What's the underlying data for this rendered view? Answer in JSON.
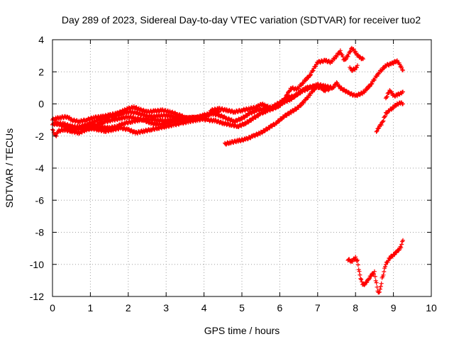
{
  "chart_data": {
    "type": "scatter",
    "title": "Day 289 of 2023, Sidereal Day-to-day VTEC variation (SDTVAR) for receiver tuo2",
    "xlabel": "GPS time / hours",
    "ylabel": "SDTVAR / TECUs",
    "xlim": [
      0,
      10
    ],
    "ylim": [
      -12,
      4
    ],
    "x_ticks": [
      0,
      1,
      2,
      3,
      4,
      5,
      6,
      7,
      8,
      9,
      10
    ],
    "y_ticks": [
      -12,
      -10,
      -8,
      -6,
      -4,
      -2,
      0,
      2,
      4
    ],
    "x_tick_labels": [
      "0",
      "1",
      "2",
      "3",
      "4",
      "5",
      "6",
      "7",
      "8",
      "9",
      "10"
    ],
    "y_tick_labels": [
      "-12",
      "-10",
      "-8",
      "-6",
      "-4",
      "-2",
      "0",
      "2",
      "4"
    ],
    "grid": true,
    "marker": "+",
    "color": "#ff0000",
    "series": [
      {
        "points": [
          [
            0.0,
            -1.0
          ],
          [
            0.1,
            -0.9
          ],
          [
            0.2,
            -0.85
          ],
          [
            0.4,
            -0.8
          ],
          [
            0.5,
            -1.0
          ],
          [
            0.7,
            -1.1
          ],
          [
            0.9,
            -1.0
          ],
          [
            1.1,
            -0.85
          ],
          [
            1.3,
            -0.8
          ],
          [
            1.5,
            -0.7
          ],
          [
            1.7,
            -0.6
          ],
          [
            1.9,
            -0.4
          ],
          [
            2.0,
            -0.3
          ],
          [
            2.15,
            -0.2
          ],
          [
            2.3,
            -0.35
          ],
          [
            2.5,
            -0.5
          ],
          [
            2.7,
            -0.45
          ],
          [
            2.9,
            -0.4
          ],
          [
            3.1,
            -0.5
          ],
          [
            3.3,
            -0.65
          ],
          [
            3.5,
            -0.85
          ],
          [
            3.7,
            -0.95
          ],
          [
            3.85,
            -1.0
          ],
          [
            4.0,
            -0.9
          ],
          [
            4.1,
            -0.7
          ],
          [
            4.2,
            -0.4
          ],
          [
            4.4,
            -0.3
          ],
          [
            4.6,
            -0.4
          ],
          [
            4.8,
            -0.5
          ],
          [
            5.0,
            -0.4
          ],
          [
            5.2,
            -0.3
          ],
          [
            5.4,
            -0.2
          ],
          [
            5.5,
            0.0
          ],
          [
            5.6,
            -0.1
          ],
          [
            5.8,
            -0.3
          ],
          [
            6.0,
            -0.1
          ],
          [
            6.1,
            0.2
          ],
          [
            6.2,
            0.6
          ],
          [
            6.3,
            1.0
          ],
          [
            6.45,
            0.9
          ],
          [
            6.6,
            1.3
          ],
          [
            6.8,
            1.8
          ],
          [
            7.0,
            2.6
          ],
          [
            7.2,
            2.7
          ],
          [
            7.35,
            2.6
          ],
          [
            7.5,
            3.0
          ],
          [
            7.6,
            3.3
          ],
          [
            7.7,
            2.7
          ],
          [
            7.8,
            3.0
          ],
          [
            7.9,
            3.5
          ],
          [
            8.0,
            3.2
          ],
          [
            8.1,
            2.9
          ],
          [
            8.2,
            2.8
          ]
        ]
      },
      {
        "points": [
          [
            0.0,
            -1.3
          ],
          [
            0.1,
            -1.2
          ],
          [
            0.3,
            -1.25
          ],
          [
            0.5,
            -1.4
          ],
          [
            0.7,
            -1.45
          ],
          [
            0.9,
            -1.3
          ],
          [
            1.1,
            -1.1
          ],
          [
            1.3,
            -0.95
          ],
          [
            1.5,
            -0.8
          ],
          [
            1.7,
            -0.7
          ],
          [
            1.9,
            -0.55
          ],
          [
            2.0,
            -0.5
          ],
          [
            2.2,
            -0.55
          ],
          [
            2.4,
            -0.7
          ],
          [
            2.6,
            -0.8
          ],
          [
            2.8,
            -0.75
          ],
          [
            3.0,
            -0.7
          ],
          [
            3.2,
            -0.8
          ],
          [
            3.4,
            -0.85
          ],
          [
            3.6,
            -0.9
          ],
          [
            3.8,
            -0.85
          ],
          [
            4.0,
            -0.7
          ],
          [
            4.2,
            -0.6
          ],
          [
            4.4,
            -0.7
          ],
          [
            4.6,
            -0.9
          ],
          [
            4.8,
            -1.1
          ],
          [
            5.0,
            -0.9
          ],
          [
            5.2,
            -0.6
          ],
          [
            5.4,
            -0.4
          ],
          [
            5.6,
            -0.3
          ],
          [
            5.8,
            -0.2
          ],
          [
            6.0,
            0.1
          ],
          [
            6.2,
            0.4
          ],
          [
            6.4,
            0.5
          ],
          [
            6.6,
            0.8
          ],
          [
            6.8,
            1.0
          ],
          [
            7.0,
            1.2
          ],
          [
            7.2,
            1.1
          ],
          [
            7.4,
            1.0
          ],
          [
            7.5,
            1.3
          ],
          [
            7.6,
            1.0
          ],
          [
            7.8,
            0.7
          ],
          [
            8.0,
            0.5
          ],
          [
            8.2,
            0.7
          ],
          [
            8.4,
            1.2
          ],
          [
            8.6,
            1.9
          ],
          [
            8.8,
            2.4
          ],
          [
            8.95,
            2.5
          ],
          [
            9.1,
            2.7
          ],
          [
            9.2,
            2.3
          ],
          [
            9.25,
            2.1
          ]
        ]
      },
      {
        "points": [
          [
            0.0,
            -1.6
          ],
          [
            0.05,
            -1.9
          ],
          [
            0.1,
            -2.0
          ],
          [
            0.15,
            -1.7
          ],
          [
            0.3,
            -1.6
          ],
          [
            0.5,
            -1.7
          ],
          [
            0.7,
            -1.8
          ],
          [
            0.9,
            -1.6
          ],
          [
            1.1,
            -1.5
          ],
          [
            1.3,
            -1.45
          ],
          [
            1.5,
            -1.5
          ],
          [
            1.7,
            -1.4
          ],
          [
            1.9,
            -1.2
          ],
          [
            2.1,
            -1.1
          ],
          [
            2.3,
            -1.0
          ],
          [
            2.5,
            -0.95
          ],
          [
            2.7,
            -1.0
          ],
          [
            2.9,
            -1.05
          ],
          [
            3.1,
            -1.0
          ],
          [
            3.3,
            -0.95
          ],
          [
            3.5,
            -0.9
          ],
          [
            3.7,
            -0.85
          ],
          [
            3.9,
            -0.9
          ],
          [
            4.1,
            -1.0
          ],
          [
            4.3,
            -1.05
          ],
          [
            4.5,
            -1.2
          ],
          [
            4.7,
            -1.3
          ],
          [
            4.9,
            -1.4
          ],
          [
            5.1,
            -1.2
          ],
          [
            5.3,
            -0.9
          ],
          [
            5.5,
            -0.6
          ],
          [
            5.7,
            -0.4
          ],
          [
            5.9,
            -0.2
          ],
          [
            6.1,
            0.1
          ],
          [
            6.3,
            0.3
          ],
          [
            6.5,
            0.7
          ],
          [
            6.7,
            1.0
          ],
          [
            6.9,
            1.1
          ],
          [
            7.1,
            1.0
          ],
          [
            7.3,
            0.9
          ]
        ]
      },
      {
        "points": [
          [
            0.05,
            -1.2
          ],
          [
            0.2,
            -1.3
          ],
          [
            0.4,
            -1.5
          ],
          [
            0.6,
            -1.6
          ],
          [
            0.8,
            -1.5
          ],
          [
            1.0,
            -1.4
          ],
          [
            1.2,
            -1.3
          ],
          [
            1.4,
            -1.1
          ],
          [
            1.6,
            -1.0
          ],
          [
            1.8,
            -0.9
          ],
          [
            2.0,
            -0.8
          ],
          [
            2.2,
            -0.9
          ],
          [
            2.4,
            -1.0
          ],
          [
            2.6,
            -1.2
          ],
          [
            2.8,
            -1.3
          ],
          [
            3.0,
            -1.2
          ],
          [
            3.2,
            -1.1
          ],
          [
            3.4,
            -1.0
          ],
          [
            3.6,
            -0.9
          ],
          [
            3.8,
            -0.85
          ],
          [
            4.0,
            -0.8
          ],
          [
            4.2,
            -0.6
          ],
          [
            4.4,
            -0.5
          ]
        ]
      },
      {
        "points": [
          [
            1.0,
            -1.5
          ],
          [
            1.2,
            -1.6
          ],
          [
            1.4,
            -1.7
          ],
          [
            1.6,
            -1.6
          ],
          [
            1.8,
            -1.5
          ],
          [
            2.0,
            -1.6
          ],
          [
            2.2,
            -1.8
          ],
          [
            2.4,
            -1.7
          ],
          [
            2.6,
            -1.6
          ],
          [
            2.8,
            -1.5
          ],
          [
            3.0,
            -1.4
          ],
          [
            3.2,
            -1.3
          ],
          [
            3.4,
            -1.2
          ],
          [
            3.6,
            -1.1
          ],
          [
            3.8,
            -1.0
          ]
        ]
      },
      {
        "points": [
          [
            4.55,
            -2.5
          ],
          [
            4.7,
            -2.4
          ],
          [
            4.9,
            -2.3
          ],
          [
            5.1,
            -2.2
          ],
          [
            5.3,
            -2.0
          ],
          [
            5.5,
            -1.8
          ],
          [
            5.7,
            -1.5
          ],
          [
            5.9,
            -1.2
          ],
          [
            6.1,
            -0.8
          ],
          [
            6.3,
            -0.5
          ],
          [
            6.5,
            -0.2
          ],
          [
            6.7,
            0.3
          ],
          [
            6.8,
            0.6
          ],
          [
            6.9,
            0.9
          ],
          [
            7.0,
            1.1
          ],
          [
            7.1,
            1.0
          ],
          [
            7.2,
            0.8
          ]
        ]
      },
      {
        "points": [
          [
            8.55,
            -1.7
          ],
          [
            8.6,
            -1.5
          ],
          [
            8.7,
            -1.2
          ],
          [
            8.75,
            -0.9
          ],
          [
            8.8,
            -0.6
          ],
          [
            8.9,
            -0.4
          ],
          [
            9.0,
            -0.2
          ],
          [
            9.1,
            0.0
          ],
          [
            9.2,
            0.05
          ],
          [
            9.25,
            0.0
          ]
        ]
      },
      {
        "points": [
          [
            8.8,
            0.3
          ],
          [
            8.85,
            0.6
          ],
          [
            8.9,
            0.8
          ],
          [
            8.95,
            0.7
          ],
          [
            9.0,
            0.5
          ],
          [
            9.1,
            0.55
          ],
          [
            9.2,
            0.7
          ],
          [
            9.25,
            0.75
          ]
        ]
      },
      {
        "points": [
          [
            7.85,
            2.3
          ],
          [
            7.9,
            2.1
          ],
          [
            8.0,
            2.2
          ],
          [
            8.05,
            2.4
          ]
        ]
      },
      {
        "points": [
          [
            7.8,
            -9.7
          ],
          [
            7.9,
            -9.8
          ],
          [
            8.0,
            -9.6
          ],
          [
            8.05,
            -9.8
          ],
          [
            8.1,
            -10.5
          ],
          [
            8.15,
            -11.0
          ],
          [
            8.2,
            -11.3
          ],
          [
            8.3,
            -11.1
          ],
          [
            8.4,
            -10.7
          ],
          [
            8.5,
            -10.5
          ],
          [
            8.55,
            -11.2
          ],
          [
            8.6,
            -11.8
          ],
          [
            8.65,
            -11.6
          ],
          [
            8.7,
            -10.9
          ],
          [
            8.8,
            -10.0
          ],
          [
            8.9,
            -9.6
          ],
          [
            9.0,
            -9.4
          ],
          [
            9.1,
            -9.2
          ],
          [
            9.2,
            -8.9
          ],
          [
            9.25,
            -8.5
          ]
        ]
      }
    ]
  }
}
